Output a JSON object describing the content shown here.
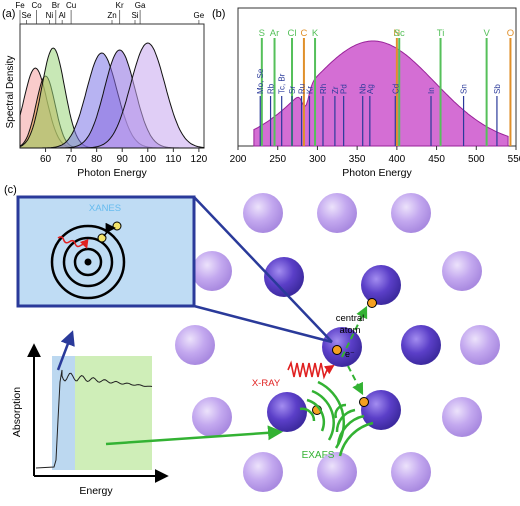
{
  "panel_a": {
    "label": "(a)",
    "ylabel": "Spectral Density",
    "xlabel": "Photon Energy",
    "ticks": [
      "60",
      "70",
      "80",
      "90",
      "100",
      "110",
      "120"
    ],
    "elements": [
      {
        "name": "Fe",
        "x": 50
      },
      {
        "name": "Se",
        "x": 52.5
      },
      {
        "name": "Co",
        "x": 56.5
      },
      {
        "name": "Ni",
        "x": 61.5
      },
      {
        "name": "Br",
        "x": 64
      },
      {
        "name": "Al",
        "x": 66.5
      },
      {
        "name": "Cu",
        "x": 70
      },
      {
        "name": "Zn",
        "x": 86
      },
      {
        "name": "Kr",
        "x": 89
      },
      {
        "name": "Si",
        "x": 95
      },
      {
        "name": "Ga",
        "x": 97
      },
      {
        "name": "Ge",
        "x": 120
      }
    ]
  },
  "panel_b": {
    "label": "(b)",
    "xlabel": "Photon Energy",
    "ticks": [
      "200",
      "250",
      "300",
      "350",
      "400",
      "450",
      "500",
      "550"
    ],
    "top_labels": [
      {
        "t": "S",
        "x": 230,
        "c": "#55c05a"
      },
      {
        "t": "Ar",
        "x": 246,
        "c": "#55c05a"
      },
      {
        "t": "C",
        "x": 283,
        "c": "#e0902a"
      },
      {
        "t": "Cl",
        "x": 268,
        "c": "#55c05a"
      },
      {
        "t": "K",
        "x": 297,
        "c": "#55c05a"
      },
      {
        "t": "N",
        "x": 400,
        "c": "#e0902a"
      },
      {
        "t": "Sc",
        "x": 403,
        "c": "#55c05a"
      },
      {
        "t": "Ti",
        "x": 455,
        "c": "#55c05a"
      },
      {
        "t": "V",
        "x": 513,
        "c": "#55c05a"
      },
      {
        "t": "O",
        "x": 543,
        "c": "#e0902a"
      }
    ],
    "mid_labels": [
      {
        "t": "Mo, Se",
        "x": 228
      },
      {
        "t": "Rb",
        "x": 241
      },
      {
        "t": "Tc, Br",
        "x": 255
      },
      {
        "t": "Sr",
        "x": 268
      },
      {
        "t": "Ru",
        "x": 280
      },
      {
        "t": "Kr",
        "x": 290
      },
      {
        "t": "Rh",
        "x": 307
      },
      {
        "t": "Zr",
        "x": 322
      },
      {
        "t": "Pd",
        "x": 333
      },
      {
        "t": "Nb",
        "x": 357
      },
      {
        "t": "Ag",
        "x": 366
      },
      {
        "t": "Cd",
        "x": 398
      },
      {
        "t": "In",
        "x": 443
      },
      {
        "t": "Sn",
        "x": 484
      },
      {
        "t": "Sb",
        "x": 526
      }
    ]
  },
  "panel_c": {
    "label": "(c)",
    "xanes_label": "XANES",
    "exafs_label": "EXAFS",
    "xray_label": "X-RAY",
    "central_atom_label_1": "central",
    "central_atom_label_2": "atom",
    "electron_label": "e⁻",
    "ylabel": "Absorption",
    "xlabel": "Energy"
  },
  "colors": {
    "frame_blue": "#2a3a9a",
    "exafs_green": "#33b233",
    "xray_red": "#e02020",
    "atom_light": "#c2a6ee",
    "atom_dark": "#5b3fc8",
    "magenta_fill": "#cc55cc",
    "xanes_text": "#66bbee"
  }
}
